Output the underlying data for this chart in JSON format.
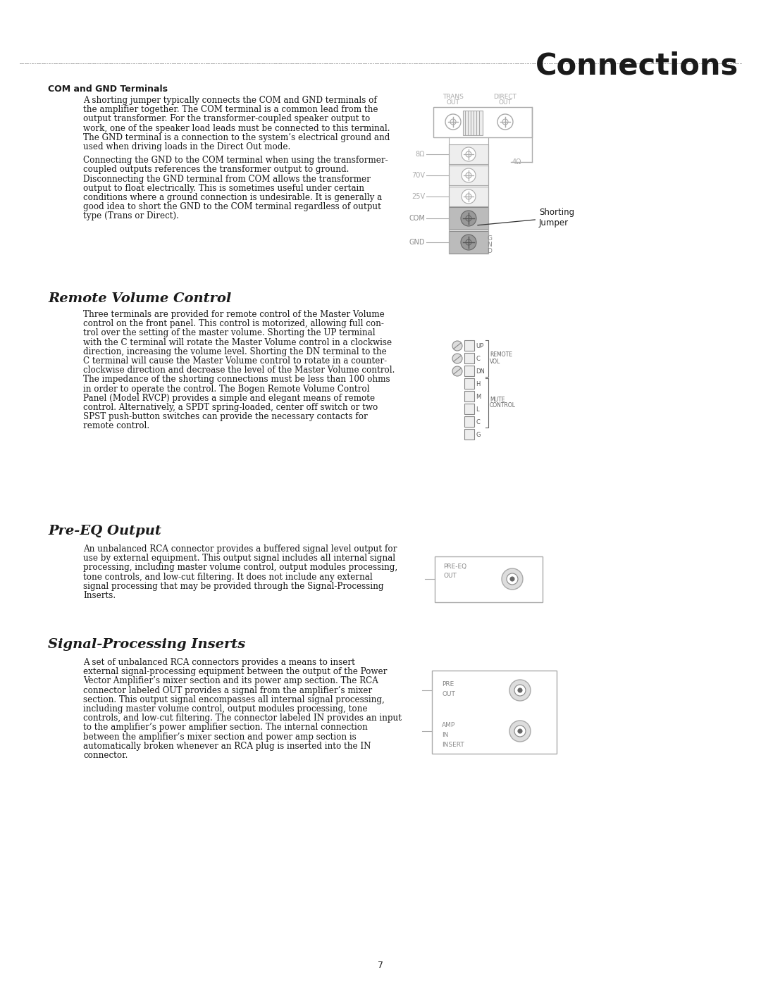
{
  "title": "Connections",
  "page_number": "7",
  "bg_color": "#ffffff",
  "text_color": "#1a1a1a",
  "gray_color": "#aaaaaa",
  "dark_gray": "#666666",
  "section1_heading": "COM and GND Terminals",
  "section1_body1": [
    "A shorting jumper typically connects the COM and GND terminals of",
    "the amplifier together. The COM terminal is a common lead from the",
    "output transformer. For the transformer-coupled speaker output to",
    "work, one of the speaker load leads must be connected to this terminal.",
    "The GND terminal is a connection to the system’s electrical ground and",
    "used when driving loads in the Direct Out mode."
  ],
  "section1_body2": [
    "Connecting the GND to the COM terminal when using the transformer-",
    "coupled outputs references the transformer output to ground.",
    "Disconnecting the GND terminal from COM allows the transformer",
    "output to float electrically. This is sometimes useful under certain",
    "conditions where a ground connection is undesirable. It is generally a",
    "good idea to short the GND to the COM terminal regardless of output",
    "type (Trans or Direct)."
  ],
  "section2_heading": "Remote Volume Control",
  "section2_body": [
    "Three terminals are provided for remote control of the Master Volume",
    "control on the front panel. This control is motorized, allowing full con-",
    "trol over the setting of the master volume. Shorting the UP terminal",
    "with the C terminal will rotate the Master Volume control in a clockwise",
    "direction, increasing the volume level. Shorting the DN terminal to the",
    "C terminal will cause the Master Volume control to rotate in a counter-",
    "clockwise direction and decrease the level of the Master Volume control.",
    "The impedance of the shorting connections must be less than 100 ohms",
    "in order to operate the control. The Bogen Remote Volume Control",
    "Panel (Model RVCP) provides a simple and elegant means of remote",
    "control. Alternatively, a SPDT spring-loaded, center off switch or two",
    "SPST push-button switches can provide the necessary contacts for",
    "remote control."
  ],
  "section3_heading": "Pre-EQ Output",
  "section3_body": [
    "An unbalanced RCA connector provides a buffered signal level output for",
    "use by external equipment. This output signal includes all internal signal",
    "processing, including master volume control, output modules processing,",
    "tone controls, and low-cut filtering. It does not include any external",
    "signal processing that may be provided through the Signal-Processing",
    "Inserts."
  ],
  "section4_heading": "Signal-Processing Inserts",
  "section4_body": [
    "A set of unbalanced RCA connectors provides a means to insert",
    "external signal-processing equipment between the output of the Power",
    "Vector Amplifier’s mixer section and its power amp section. The RCA",
    "connector labeled OUT provides a signal from the amplifier’s mixer",
    "section. This output signal encompasses all internal signal processing,",
    "including master volume control, output modules processing, tone",
    "controls, and low-cut filtering. The connector labeled IN provides an input",
    "to the amplifier’s power amplifier section. The internal connection",
    "between the amplifier’s mixer section and power amp section is",
    "automatically broken whenever an RCA plug is inserted into the IN",
    "connector."
  ]
}
